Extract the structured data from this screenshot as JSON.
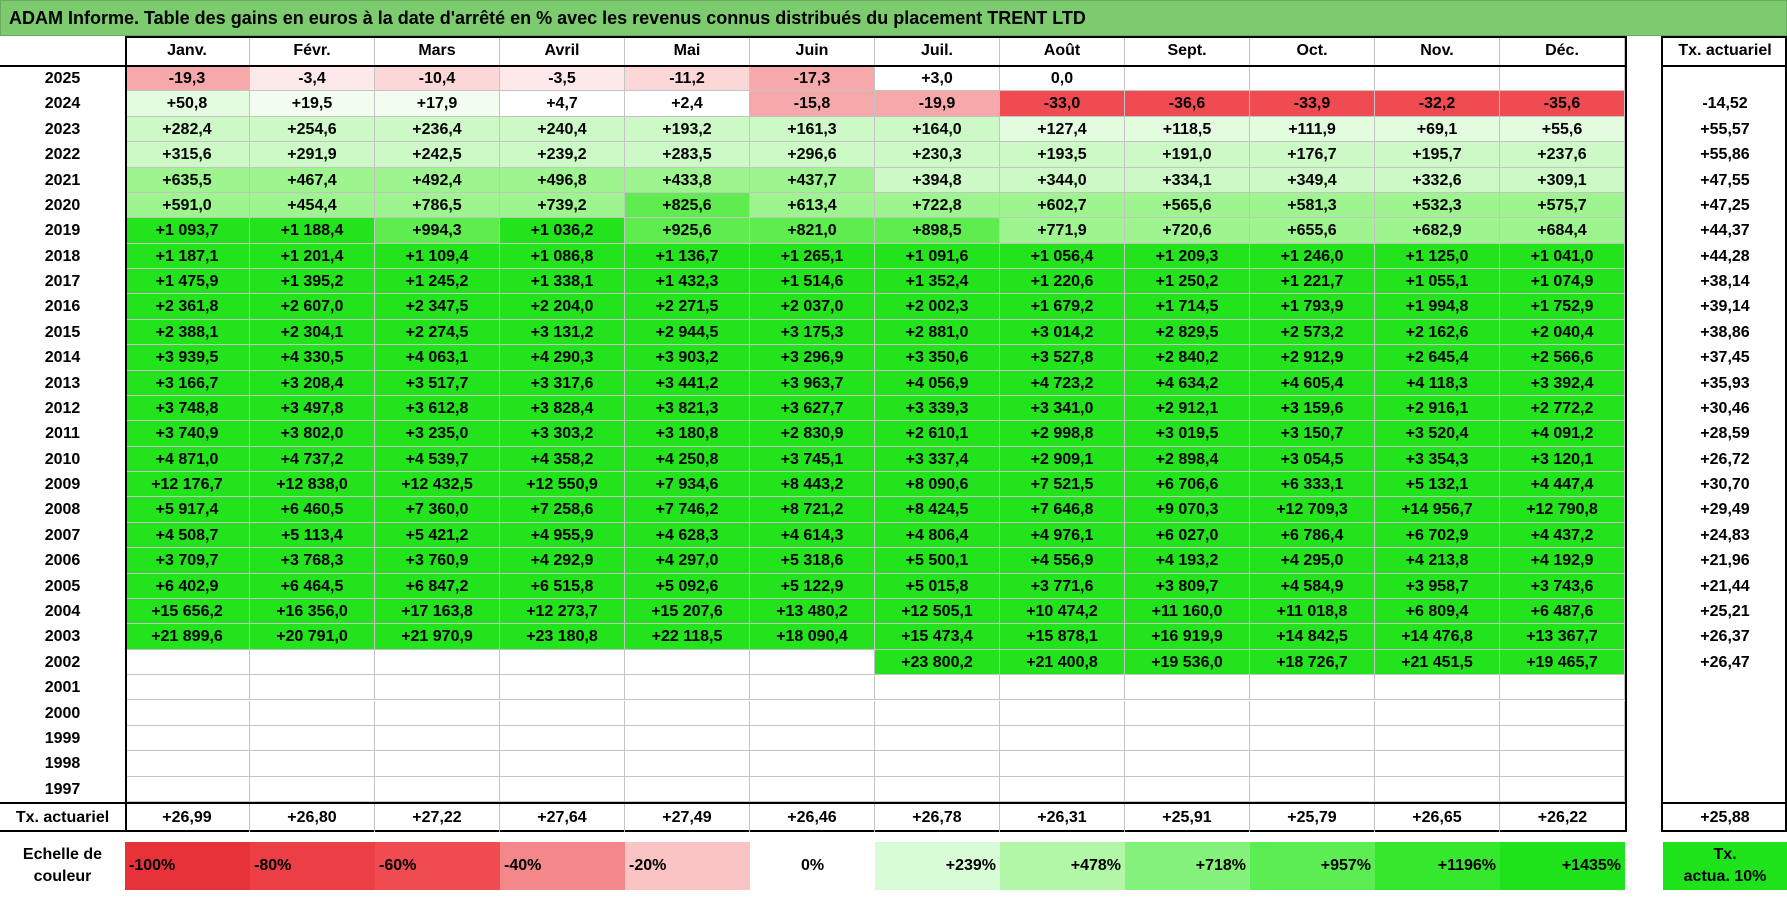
{
  "title": "ADAM Informe. Table des gains en euros à la date d'arrêté en % avec les revenus connus distribués du placement TRENT LTD",
  "months": [
    "Janv.",
    "Févr.",
    "Mars",
    "Avril",
    "Mai",
    "Juin",
    "Juil.",
    "Août",
    "Sept.",
    "Oct.",
    "Nov.",
    "Déc."
  ],
  "rate_column_header": "Tx. actuariel",
  "years": [
    "2025",
    "2024",
    "2023",
    "2022",
    "2021",
    "2020",
    "2019",
    "2018",
    "2017",
    "2016",
    "2015",
    "2014",
    "2013",
    "2012",
    "2011",
    "2010",
    "2009",
    "2008",
    "2007",
    "2006",
    "2005",
    "2004",
    "2003",
    "2002",
    "2001",
    "2000",
    "1999",
    "1998",
    "1997"
  ],
  "rows": [
    {
      "cells": [
        "-19,3",
        "-3,4",
        "-10,4",
        "-3,5",
        "-11,2",
        "-17,3",
        "+3,0",
        "0,0",
        "",
        "",
        "",
        ""
      ],
      "rate": ""
    },
    {
      "cells": [
        "+50,8",
        "+19,5",
        "+17,9",
        "+4,7",
        "+2,4",
        "-15,8",
        "-19,9",
        "-33,0",
        "-36,6",
        "-33,9",
        "-32,2",
        "-35,6"
      ],
      "rate": "-14,52"
    },
    {
      "cells": [
        "+282,4",
        "+254,6",
        "+236,4",
        "+240,4",
        "+193,2",
        "+161,3",
        "+164,0",
        "+127,4",
        "+118,5",
        "+111,9",
        "+69,1",
        "+55,6"
      ],
      "rate": "+55,57"
    },
    {
      "cells": [
        "+315,6",
        "+291,9",
        "+242,5",
        "+239,2",
        "+283,5",
        "+296,6",
        "+230,3",
        "+193,5",
        "+191,0",
        "+176,7",
        "+195,7",
        "+237,6"
      ],
      "rate": "+55,86"
    },
    {
      "cells": [
        "+635,5",
        "+467,4",
        "+492,4",
        "+496,8",
        "+433,8",
        "+437,7",
        "+394,8",
        "+344,0",
        "+334,1",
        "+349,4",
        "+332,6",
        "+309,1"
      ],
      "rate": "+47,55"
    },
    {
      "cells": [
        "+591,0",
        "+454,4",
        "+786,5",
        "+739,2",
        "+825,6",
        "+613,4",
        "+722,8",
        "+602,7",
        "+565,6",
        "+581,3",
        "+532,3",
        "+575,7"
      ],
      "rate": "+47,25"
    },
    {
      "cells": [
        "+1 093,7",
        "+1 188,4",
        "+994,3",
        "+1 036,2",
        "+925,6",
        "+821,0",
        "+898,5",
        "+771,9",
        "+720,6",
        "+655,6",
        "+682,9",
        "+684,4"
      ],
      "rate": "+44,37"
    },
    {
      "cells": [
        "+1 187,1",
        "+1 201,4",
        "+1 109,4",
        "+1 086,8",
        "+1 136,7",
        "+1 265,1",
        "+1 091,6",
        "+1 056,4",
        "+1 209,3",
        "+1 246,0",
        "+1 125,0",
        "+1 041,0"
      ],
      "rate": "+44,28"
    },
    {
      "cells": [
        "+1 475,9",
        "+1 395,2",
        "+1 245,2",
        "+1 338,1",
        "+1 432,3",
        "+1 514,6",
        "+1 352,4",
        "+1 220,6",
        "+1 250,2",
        "+1 221,7",
        "+1 055,1",
        "+1 074,9"
      ],
      "rate": "+38,14"
    },
    {
      "cells": [
        "+2 361,8",
        "+2 607,0",
        "+2 347,5",
        "+2 204,0",
        "+2 271,5",
        "+2 037,0",
        "+2 002,3",
        "+1 679,2",
        "+1 714,5",
        "+1 793,9",
        "+1 994,8",
        "+1 752,9"
      ],
      "rate": "+39,14"
    },
    {
      "cells": [
        "+2 388,1",
        "+2 304,1",
        "+2 274,5",
        "+3 131,2",
        "+2 944,5",
        "+3 175,3",
        "+2 881,0",
        "+3 014,2",
        "+2 829,5",
        "+2 573,2",
        "+2 162,6",
        "+2 040,4"
      ],
      "rate": "+38,86"
    },
    {
      "cells": [
        "+3 939,5",
        "+4 330,5",
        "+4 063,1",
        "+4 290,3",
        "+3 903,2",
        "+3 296,9",
        "+3 350,6",
        "+3 527,8",
        "+2 840,2",
        "+2 912,9",
        "+2 645,4",
        "+2 566,6"
      ],
      "rate": "+37,45"
    },
    {
      "cells": [
        "+3 166,7",
        "+3 208,4",
        "+3 517,7",
        "+3 317,6",
        "+3 441,2",
        "+3 963,7",
        "+4 056,9",
        "+4 723,2",
        "+4 634,2",
        "+4 605,4",
        "+4 118,3",
        "+3 392,4"
      ],
      "rate": "+35,93"
    },
    {
      "cells": [
        "+3 748,8",
        "+3 497,8",
        "+3 612,8",
        "+3 828,4",
        "+3 821,3",
        "+3 627,7",
        "+3 339,3",
        "+3 341,0",
        "+2 912,1",
        "+3 159,6",
        "+2 916,1",
        "+2 772,2"
      ],
      "rate": "+30,46"
    },
    {
      "cells": [
        "+3 740,9",
        "+3 802,0",
        "+3 235,0",
        "+3 303,2",
        "+3 180,8",
        "+2 830,9",
        "+2 610,1",
        "+2 998,8",
        "+3 019,5",
        "+3 150,7",
        "+3 520,4",
        "+4 091,2"
      ],
      "rate": "+28,59"
    },
    {
      "cells": [
        "+4 871,0",
        "+4 737,2",
        "+4 539,7",
        "+4 358,2",
        "+4 250,8",
        "+3 745,1",
        "+3 337,4",
        "+2 909,1",
        "+2 898,4",
        "+3 054,5",
        "+3 354,3",
        "+3 120,1"
      ],
      "rate": "+26,72"
    },
    {
      "cells": [
        "+12 176,7",
        "+12 838,0",
        "+12 432,5",
        "+12 550,9",
        "+7 934,6",
        "+8 443,2",
        "+8 090,6",
        "+7 521,5",
        "+6 706,6",
        "+6 333,1",
        "+5 132,1",
        "+4 447,4"
      ],
      "rate": "+30,70"
    },
    {
      "cells": [
        "+5 917,4",
        "+6 460,5",
        "+7 360,0",
        "+7 258,6",
        "+7 746,2",
        "+8 721,2",
        "+8 424,5",
        "+7 646,8",
        "+9 070,3",
        "+12 709,3",
        "+14 956,7",
        "+12 790,8"
      ],
      "rate": "+29,49"
    },
    {
      "cells": [
        "+4 508,7",
        "+5 113,4",
        "+5 421,2",
        "+4 955,9",
        "+4 628,3",
        "+4 614,3",
        "+4 806,4",
        "+4 976,1",
        "+6 027,0",
        "+6 786,4",
        "+6 702,9",
        "+4 437,2"
      ],
      "rate": "+24,83"
    },
    {
      "cells": [
        "+3 709,7",
        "+3 768,3",
        "+3 760,9",
        "+4 292,9",
        "+4 297,0",
        "+5 318,6",
        "+5 500,1",
        "+4 556,9",
        "+4 193,2",
        "+4 295,0",
        "+4 213,8",
        "+4 192,9"
      ],
      "rate": "+21,96"
    },
    {
      "cells": [
        "+6 402,9",
        "+6 464,5",
        "+6 847,2",
        "+6 515,8",
        "+5 092,6",
        "+5 122,9",
        "+5 015,8",
        "+3 771,6",
        "+3 809,7",
        "+4 584,9",
        "+3 958,7",
        "+3 743,6"
      ],
      "rate": "+21,44"
    },
    {
      "cells": [
        "+15 656,2",
        "+16 356,0",
        "+17 163,8",
        "+12 273,7",
        "+15 207,6",
        "+13 480,2",
        "+12 505,1",
        "+10 474,2",
        "+11 160,0",
        "+11 018,8",
        "+6 809,4",
        "+6 487,6"
      ],
      "rate": "+25,21"
    },
    {
      "cells": [
        "+21 899,6",
        "+20 791,0",
        "+21 970,9",
        "+23 180,8",
        "+22 118,5",
        "+18 090,4",
        "+15 473,4",
        "+15 878,1",
        "+16 919,9",
        "+14 842,5",
        "+14 476,8",
        "+13 367,7"
      ],
      "rate": "+26,37"
    },
    {
      "cells": [
        "",
        "",
        "",
        "",
        "",
        "",
        "+23 800,2",
        "+21 400,8",
        "+19 536,0",
        "+18 726,7",
        "+21 451,5",
        "+19 465,7"
      ],
      "rate": "+26,47"
    },
    {
      "cells": [
        "",
        "",
        "",
        "",
        "",
        "",
        "",
        "",
        "",
        "",
        "",
        ""
      ],
      "rate": ""
    },
    {
      "cells": [
        "",
        "",
        "",
        "",
        "",
        "",
        "",
        "",
        "",
        "",
        "",
        ""
      ],
      "rate": ""
    },
    {
      "cells": [
        "",
        "",
        "",
        "",
        "",
        "",
        "",
        "",
        "",
        "",
        "",
        ""
      ],
      "rate": ""
    },
    {
      "cells": [
        "",
        "",
        "",
        "",
        "",
        "",
        "",
        "",
        "",
        "",
        "",
        ""
      ],
      "rate": ""
    },
    {
      "cells": [
        "",
        "",
        "",
        "",
        "",
        "",
        "",
        "",
        "",
        "",
        "",
        ""
      ],
      "rate": ""
    }
  ],
  "footer": {
    "label": "Tx. actuariel",
    "values": [
      "+26,99",
      "+26,80",
      "+27,22",
      "+27,64",
      "+27,49",
      "+26,46",
      "+26,78",
      "+26,31",
      "+25,91",
      "+25,79",
      "+26,65",
      "+26,22"
    ],
    "overall": "+25,88"
  },
  "scale": {
    "label_line1": "Echelle de",
    "label_line2": "couleur",
    "items": [
      {
        "label": "-100%",
        "color": "#e8323a"
      },
      {
        "label": "-80%",
        "color": "#ec3e45"
      },
      {
        "label": "-60%",
        "color": "#f04b50"
      },
      {
        "label": "-40%",
        "color": "#f4878a"
      },
      {
        "label": "-20%",
        "color": "#fac3c4"
      },
      {
        "label": "0%",
        "color": "#ffffff"
      },
      {
        "label": "+239%",
        "color": "#d8fdd6"
      },
      {
        "label": "+478%",
        "color": "#b2f7a8"
      },
      {
        "label": "+718%",
        "color": "#84f27a"
      },
      {
        "label": "+957%",
        "color": "#5ced52"
      },
      {
        "label": "+1196%",
        "color": "#35e82e"
      },
      {
        "label": "+1435%",
        "color": "#1ee21a"
      }
    ],
    "extra_line1": "Tx.",
    "extra_line2": "actua. 10%",
    "extra_color": "#1ee21a"
  },
  "cell_colors": {
    "neg_deep": "#f04b50",
    "neg_mid": "#f7a8aa",
    "neg_light": "#fcd7d7",
    "neg_faint": "#fde9e9",
    "pos_faint": "#f2fdf0",
    "pos_light": "#e3fbdf",
    "pos_mid": "#cdf9c6",
    "pos_strong": "#9ef48f",
    "pos_deep": "#5fec4f",
    "pos_full": "#22e31c"
  }
}
